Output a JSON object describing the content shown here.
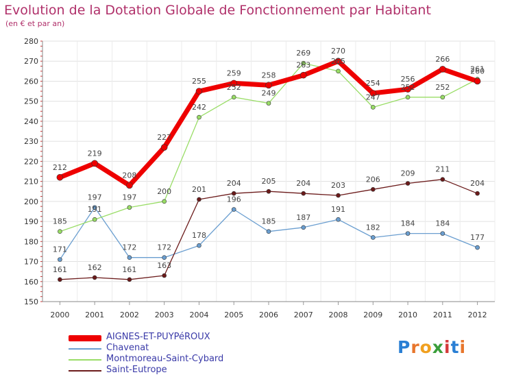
{
  "header": {
    "title": "Evolution de la Dotation Globale de Fonctionnement par Habitant",
    "subtitle": "(en € et par an)"
  },
  "chart_data": {
    "type": "line",
    "title": "Evolution de la Dotation Globale de Fonctionnement par Habitant",
    "subtitle": "(en € et par an)",
    "xlabel": "",
    "ylabel": "",
    "x": [
      2000,
      2001,
      2002,
      2003,
      2004,
      2005,
      2006,
      2007,
      2008,
      2009,
      2010,
      2011,
      2012
    ],
    "ylim": [
      150,
      280
    ],
    "yticks": [
      150,
      160,
      170,
      180,
      190,
      200,
      210,
      220,
      230,
      240,
      250,
      260,
      270,
      280
    ],
    "grid": true,
    "legend_position": "bottom-left",
    "series": [
      {
        "name": "AIGNES-ET-PUYPéROUX",
        "color": "#ee0000",
        "values": [
          212,
          219,
          208,
          227,
          255,
          259,
          258,
          263,
          270,
          254,
          256,
          266,
          260
        ]
      },
      {
        "name": "Chavenat",
        "color": "#6a9ed0",
        "values": [
          171,
          197,
          172,
          172,
          178,
          196,
          185,
          187,
          191,
          182,
          184,
          184,
          177
        ]
      },
      {
        "name": "Montmoreau-Saint-Cybard",
        "color": "#99dd66",
        "values": [
          185,
          191,
          197,
          200,
          242,
          252,
          249,
          269,
          265,
          247,
          252,
          252,
          261
        ]
      },
      {
        "name": "Saint-Eutrope",
        "color": "#6b1a1a",
        "values": [
          161,
          162,
          161,
          163,
          201,
          204,
          205,
          204,
          203,
          206,
          209,
          211,
          204
        ]
      }
    ]
  },
  "logo": {
    "letters": [
      "P",
      "r",
      "o",
      "x",
      "i",
      "t",
      "i"
    ],
    "colors": [
      "#2a7fd4",
      "#e8762c",
      "#f0a020",
      "#3a9e3a",
      "#d43a3a",
      "#2a7fd4",
      "#e8762c"
    ]
  }
}
